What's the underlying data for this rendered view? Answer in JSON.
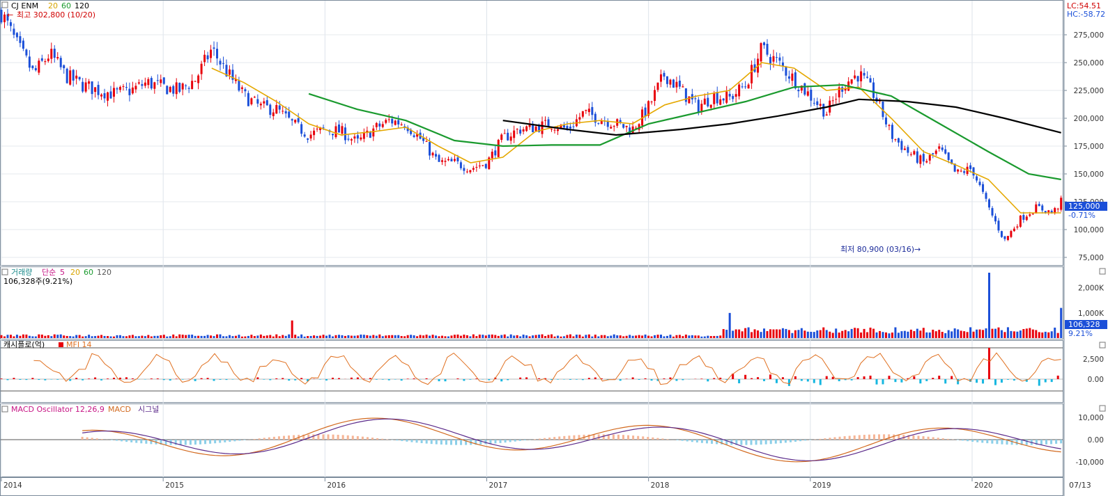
{
  "price_panel": {
    "title": "CJ ENM",
    "ma_labels": [
      {
        "text": "20",
        "color": "#d7a400"
      },
      {
        "text": "60",
        "color": "#1a9a2e"
      },
      {
        "text": "120",
        "color": "#000000"
      }
    ],
    "high_note": "최고 302,800 (10/20)",
    "low_note": "최저 80,900 (03/16)",
    "lc": "LC:54.51",
    "hc": "HC:-58.72",
    "last_price": "125,000",
    "change": "-0.71%",
    "yticks": [
      {
        "v": 275000,
        "t": "275,000"
      },
      {
        "v": 250000,
        "t": "250,000"
      },
      {
        "v": 225000,
        "t": "225,000"
      },
      {
        "v": 200000,
        "t": "200,000"
      },
      {
        "v": 175000,
        "t": "175,000"
      },
      {
        "v": 150000,
        "t": "150,000"
      },
      {
        "v": 125000,
        "t": "125,000"
      },
      {
        "v": 100000,
        "t": "100,000"
      },
      {
        "v": 75000,
        "t": "75,000"
      }
    ]
  },
  "volume_panel": {
    "title": "거래량",
    "ma_prefix": "단순",
    "ma_labels": [
      {
        "text": "5",
        "color": "#c71585"
      },
      {
        "text": "20",
        "color": "#d7a400"
      },
      {
        "text": "60",
        "color": "#1a9a2e"
      },
      {
        "text": "120",
        "color": "#555555"
      }
    ],
    "value_note": "106,328주(9.21%)",
    "last": "106,328",
    "pct": "9.21%",
    "yticks": [
      {
        "v": 2000000,
        "t": "2,000K"
      },
      {
        "v": 1000000,
        "t": "1,000K"
      }
    ]
  },
  "cashflow_panel": {
    "title": "캐시플로(억)",
    "mfi_label": "MFI 14",
    "yticks": [
      {
        "v": 2500,
        "t": "2,500"
      },
      {
        "v": 0,
        "t": "0.00"
      }
    ]
  },
  "macd_panel": {
    "title": "MACD Oscillator 12,26,9",
    "macd_label": "MACD",
    "signal_label": "시그널",
    "yticks": [
      {
        "v": 10000,
        "t": "10,000"
      },
      {
        "v": 0,
        "t": "0.00"
      },
      {
        "v": -10000,
        "t": "-10,000"
      }
    ]
  },
  "x_axis": {
    "ticks": [
      {
        "t": "2014",
        "d": 2014.0
      },
      {
        "t": "2015",
        "d": 2015.0
      },
      {
        "t": "2016",
        "d": 2016.0
      },
      {
        "t": "2017",
        "d": 2017.0
      },
      {
        "t": "2018",
        "d": 2018.0
      },
      {
        "t": "2019",
        "d": 2019.0
      },
      {
        "t": "2020",
        "d": 2020.0
      }
    ],
    "right_label": "07/13"
  },
  "colors": {
    "up": "#e8000b",
    "down": "#1b4fd8",
    "ma20": "#e5a800",
    "ma60": "#1a9a2e",
    "ma120": "#000000",
    "mfi": "#e07020",
    "macd": "#d2691e",
    "signal": "#5b2a8a",
    "osc_pos": "#f6b596",
    "osc_neg": "#8ccfe8",
    "cash_pos": "#e8000b",
    "cash_neg": "#17b7e0"
  },
  "chart_data": {
    "type": "candlestick",
    "interval": "weekly",
    "x_range": [
      "2014-01",
      "2020-07-13"
    ],
    "price_ylim": [
      70000,
      305000
    ],
    "high": {
      "value": 302800,
      "date": "10/20"
    },
    "low": {
      "value": 80900,
      "date": "03/16"
    },
    "last_close": 125000,
    "change_pct": -0.71,
    "close_path": [
      [
        2014.0,
        295000
      ],
      [
        2014.1,
        265000
      ],
      [
        2014.2,
        240000
      ],
      [
        2014.3,
        258000
      ],
      [
        2014.4,
        238000
      ],
      [
        2014.5,
        230000
      ],
      [
        2014.6,
        225000
      ],
      [
        2014.7,
        222000
      ],
      [
        2014.8,
        225000
      ],
      [
        2014.9,
        232000
      ],
      [
        2015.0,
        228000
      ],
      [
        2015.1,
        225000
      ],
      [
        2015.2,
        235000
      ],
      [
        2015.3,
        262000
      ],
      [
        2015.4,
        240000
      ],
      [
        2015.5,
        220000
      ],
      [
        2015.6,
        210000
      ],
      [
        2015.7,
        208000
      ],
      [
        2015.8,
        195000
      ],
      [
        2015.9,
        185000
      ],
      [
        2016.0,
        190000
      ],
      [
        2016.1,
        188000
      ],
      [
        2016.2,
        178000
      ],
      [
        2016.3,
        190000
      ],
      [
        2016.4,
        198000
      ],
      [
        2016.5,
        195000
      ],
      [
        2016.6,
        180000
      ],
      [
        2016.7,
        160000
      ],
      [
        2016.8,
        160000
      ],
      [
        2016.9,
        155000
      ],
      [
        2017.0,
        160000
      ],
      [
        2017.1,
        182000
      ],
      [
        2017.2,
        190000
      ],
      [
        2017.3,
        192000
      ],
      [
        2017.4,
        195000
      ],
      [
        2017.5,
        190000
      ],
      [
        2017.6,
        205000
      ],
      [
        2017.7,
        200000
      ],
      [
        2017.8,
        195000
      ],
      [
        2017.9,
        190000
      ],
      [
        2018.0,
        210000
      ],
      [
        2018.1,
        240000
      ],
      [
        2018.2,
        225000
      ],
      [
        2018.3,
        210000
      ],
      [
        2018.4,
        220000
      ],
      [
        2018.5,
        218000
      ],
      [
        2018.6,
        230000
      ],
      [
        2018.7,
        262000
      ],
      [
        2018.8,
        250000
      ],
      [
        2018.9,
        235000
      ],
      [
        2019.0,
        220000
      ],
      [
        2019.1,
        205000
      ],
      [
        2019.2,
        230000
      ],
      [
        2019.3,
        240000
      ],
      [
        2019.4,
        220000
      ],
      [
        2019.5,
        185000
      ],
      [
        2019.6,
        170000
      ],
      [
        2019.7,
        160000
      ],
      [
        2019.8,
        172000
      ],
      [
        2019.9,
        150000
      ],
      [
        2020.0,
        155000
      ],
      [
        2020.1,
        120000
      ],
      [
        2020.2,
        90000
      ],
      [
        2020.3,
        110000
      ],
      [
        2020.4,
        120000
      ],
      [
        2020.5,
        115000
      ],
      [
        2020.55,
        125000
      ]
    ],
    "ma20": [
      [
        2015.3,
        245000
      ],
      [
        2015.5,
        232000
      ],
      [
        2015.7,
        215000
      ],
      [
        2015.9,
        195000
      ],
      [
        2016.1,
        185000
      ],
      [
        2016.3,
        188000
      ],
      [
        2016.5,
        192000
      ],
      [
        2016.7,
        175000
      ],
      [
        2016.9,
        160000
      ],
      [
        2017.1,
        165000
      ],
      [
        2017.3,
        188000
      ],
      [
        2017.5,
        195000
      ],
      [
        2017.7,
        198000
      ],
      [
        2017.9,
        195000
      ],
      [
        2018.1,
        212000
      ],
      [
        2018.3,
        220000
      ],
      [
        2018.5,
        225000
      ],
      [
        2018.7,
        250000
      ],
      [
        2018.9,
        245000
      ],
      [
        2019.1,
        225000
      ],
      [
        2019.3,
        228000
      ],
      [
        2019.5,
        200000
      ],
      [
        2019.7,
        170000
      ],
      [
        2019.9,
        158000
      ],
      [
        2020.1,
        145000
      ],
      [
        2020.3,
        115000
      ],
      [
        2020.55,
        115000
      ]
    ],
    "ma60": [
      [
        2015.9,
        222000
      ],
      [
        2016.2,
        208000
      ],
      [
        2016.5,
        198000
      ],
      [
        2016.8,
        180000
      ],
      [
        2017.1,
        175000
      ],
      [
        2017.4,
        176000
      ],
      [
        2017.7,
        176000
      ],
      [
        2018.0,
        195000
      ],
      [
        2018.3,
        205000
      ],
      [
        2018.6,
        215000
      ],
      [
        2018.9,
        228000
      ],
      [
        2019.2,
        230000
      ],
      [
        2019.5,
        220000
      ],
      [
        2019.8,
        195000
      ],
      [
        2020.1,
        170000
      ],
      [
        2020.35,
        150000
      ],
      [
        2020.55,
        145000
      ]
    ],
    "ma120": [
      [
        2017.1,
        198000
      ],
      [
        2017.5,
        190000
      ],
      [
        2017.8,
        185000
      ],
      [
        2018.2,
        190000
      ],
      [
        2018.5,
        195000
      ],
      [
        2018.8,
        202000
      ],
      [
        2019.1,
        210000
      ],
      [
        2019.3,
        217000
      ],
      [
        2019.6,
        215000
      ],
      [
        2019.9,
        210000
      ],
      [
        2020.2,
        200000
      ],
      [
        2020.55,
        187000
      ]
    ],
    "volume_max": 2600000,
    "volume_spikes": [
      [
        2015.8,
        700000
      ],
      [
        2018.5,
        1000000
      ],
      [
        2020.1,
        2600000
      ],
      [
        2020.55,
        1200000
      ]
    ],
    "mfi_range": [
      0,
      100
    ],
    "macd_ylim": [
      -15000,
      15000
    ]
  }
}
